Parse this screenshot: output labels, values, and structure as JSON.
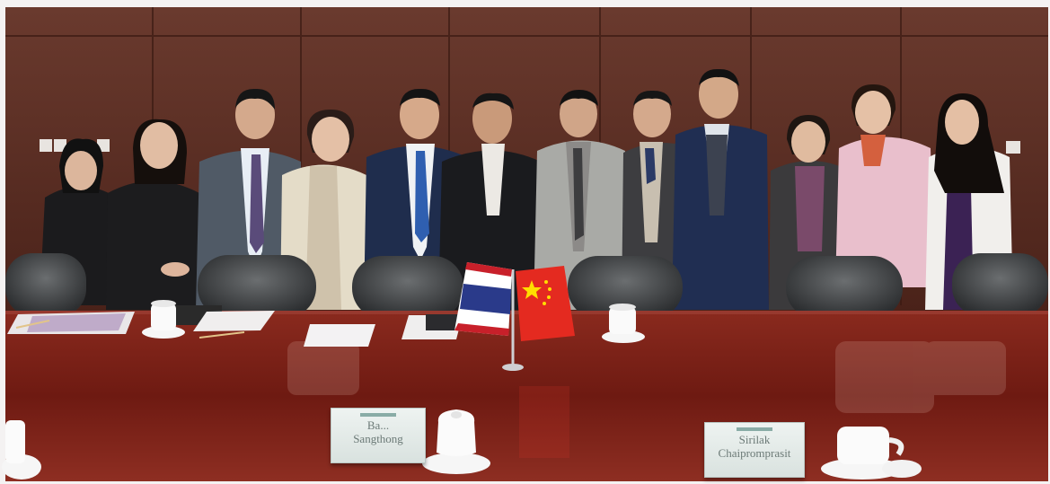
{
  "scene": {
    "wall_color": "#5a2d22",
    "table_color": "#7a1e16",
    "flags": [
      {
        "country": "Thailand",
        "icon": "thai-flag-icon"
      },
      {
        "country": "China",
        "icon": "chinese-flag-icon"
      }
    ]
  },
  "nameplates": [
    {
      "line1": "Ba...",
      "line2": "Sangthong"
    },
    {
      "line1": "Sirilak",
      "line2": "Chaipromprasit"
    }
  ]
}
